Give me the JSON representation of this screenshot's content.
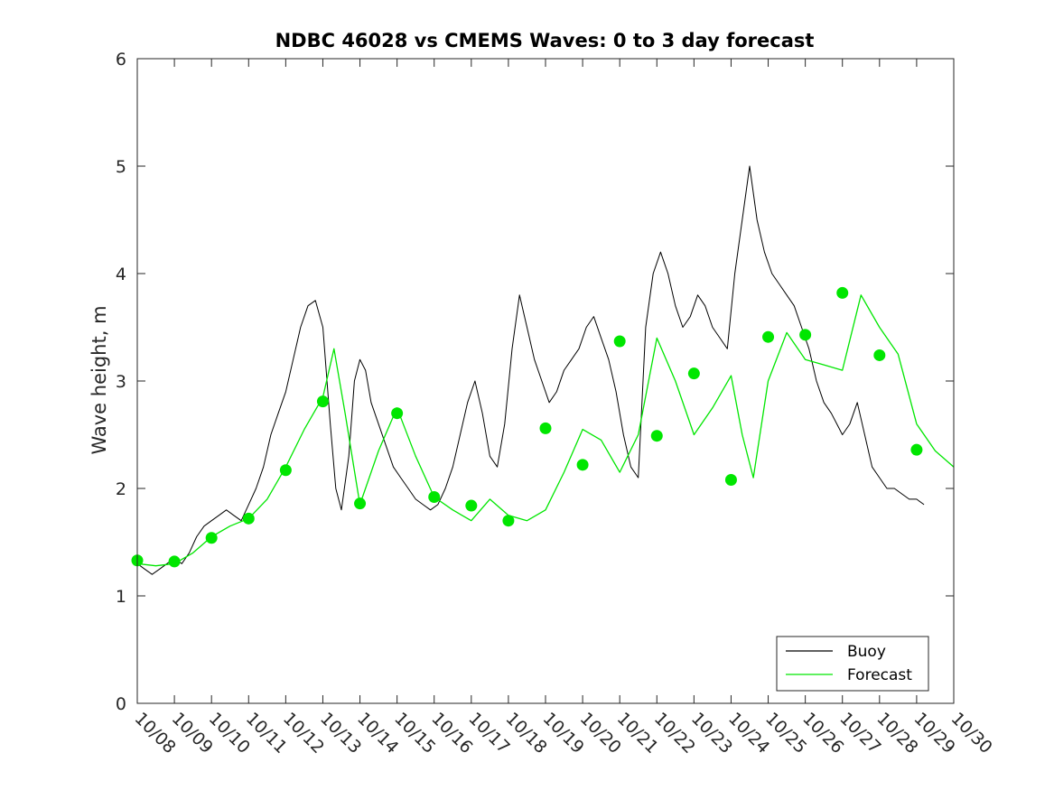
{
  "chart_data": {
    "type": "line",
    "title": "NDBC 46028 vs CMEMS Waves: 0 to 3 day forecast",
    "xlabel": "",
    "ylabel": "Wave height, m",
    "ylim": [
      0,
      6
    ],
    "yticks": [
      "0",
      "1",
      "2",
      "3",
      "4",
      "5",
      "6"
    ],
    "xlim": [
      0,
      22
    ],
    "xticks": [
      "10/08",
      "10/09",
      "10/10",
      "10/11",
      "10/12",
      "10/13",
      "10/14",
      "10/15",
      "10/16",
      "10/17",
      "10/18",
      "10/19",
      "10/20",
      "10/21",
      "10/22",
      "10/23",
      "10/24",
      "10/25",
      "10/26",
      "10/27",
      "10/28",
      "10/29",
      "10/30"
    ],
    "grid": false,
    "legend": {
      "placement": "bottom-right",
      "entries": [
        "Buoy",
        "Forecast"
      ]
    },
    "colors": {
      "buoy": "#000000",
      "forecast": "#00e600",
      "axis": "#262626"
    },
    "series": [
      {
        "name": "Buoy",
        "x": [
          0,
          0.2,
          0.4,
          0.6,
          0.8,
          1.0,
          1.2,
          1.4,
          1.6,
          1.8,
          2.0,
          2.2,
          2.4,
          2.6,
          2.8,
          3.0,
          3.2,
          3.4,
          3.6,
          3.8,
          4.0,
          4.2,
          4.4,
          4.6,
          4.8,
          5.0,
          5.2,
          5.35,
          5.5,
          5.7,
          5.85,
          6.0,
          6.15,
          6.3,
          6.5,
          6.7,
          6.9,
          7.1,
          7.3,
          7.5,
          7.7,
          7.9,
          8.1,
          8.3,
          8.5,
          8.7,
          8.9,
          9.1,
          9.3,
          9.5,
          9.7,
          9.9,
          10.1,
          10.3,
          10.5,
          10.7,
          10.9,
          11.1,
          11.3,
          11.5,
          11.7,
          11.9,
          12.1,
          12.3,
          12.5,
          12.7,
          12.9,
          13.1,
          13.3,
          13.5,
          13.7,
          13.9,
          14.1,
          14.3,
          14.5,
          14.7,
          14.9,
          15.1,
          15.3,
          15.5,
          15.7,
          15.9,
          16.1,
          16.3,
          16.5,
          16.7,
          16.9,
          17.1,
          17.3,
          17.5,
          17.7,
          17.9,
          18.1,
          18.3,
          18.5,
          18.7,
          18.85,
          19.0,
          19.2,
          19.4,
          19.6,
          19.8,
          20.0,
          20.2,
          20.4,
          20.6,
          20.8,
          21.0,
          21.2
        ],
        "values": [
          1.3,
          1.25,
          1.2,
          1.25,
          1.3,
          1.35,
          1.3,
          1.4,
          1.55,
          1.65,
          1.7,
          1.75,
          1.8,
          1.75,
          1.7,
          1.85,
          2.0,
          2.2,
          2.5,
          2.7,
          2.9,
          3.2,
          3.5,
          3.7,
          3.75,
          3.5,
          2.6,
          2.0,
          1.8,
          2.3,
          3.0,
          3.2,
          3.1,
          2.8,
          2.6,
          2.4,
          2.2,
          2.1,
          2.0,
          1.9,
          1.85,
          1.8,
          1.85,
          2.0,
          2.2,
          2.5,
          2.8,
          3.0,
          2.7,
          2.3,
          2.2,
          2.6,
          3.3,
          3.8,
          3.5,
          3.2,
          3.0,
          2.8,
          2.9,
          3.1,
          3.2,
          3.3,
          3.5,
          3.6,
          3.4,
          3.2,
          2.9,
          2.5,
          2.2,
          2.1,
          3.5,
          4.0,
          4.2,
          4.0,
          3.7,
          3.5,
          3.6,
          3.8,
          3.7,
          3.5,
          3.4,
          3.3,
          4.0,
          4.5,
          5.0,
          4.5,
          4.2,
          4.0,
          3.9,
          3.8,
          3.7,
          3.5,
          3.3,
          3.0,
          2.8,
          2.7,
          2.6,
          2.5,
          2.6,
          2.8,
          2.5,
          2.2,
          2.1,
          2.0,
          2.0,
          1.95,
          1.9,
          1.9,
          1.85
        ]
      },
      {
        "name": "Forecast",
        "x": [
          0,
          0.5,
          1.0,
          1.5,
          2.0,
          2.5,
          3.0,
          3.5,
          4.0,
          4.5,
          5.0,
          5.3,
          5.6,
          6.0,
          6.5,
          7.0,
          7.5,
          8.0,
          8.5,
          9.0,
          9.5,
          10.0,
          10.5,
          11.0,
          11.5,
          12.0,
          12.5,
          13.0,
          13.5,
          14.0,
          14.5,
          15.0,
          15.5,
          16.0,
          16.3,
          16.6,
          17.0,
          17.5,
          18.0,
          18.5,
          19.0,
          19.5,
          20.0,
          20.5,
          21.0,
          21.5,
          22.0
        ],
        "values": [
          1.3,
          1.28,
          1.3,
          1.4,
          1.55,
          1.65,
          1.72,
          1.9,
          2.2,
          2.55,
          2.85,
          3.3,
          2.7,
          1.85,
          2.35,
          2.75,
          2.3,
          1.92,
          1.8,
          1.7,
          1.9,
          1.75,
          1.7,
          1.8,
          2.15,
          2.55,
          2.45,
          2.15,
          2.5,
          3.4,
          3.0,
          2.5,
          2.75,
          3.05,
          2.5,
          2.1,
          3.0,
          3.45,
          3.2,
          3.15,
          3.1,
          3.8,
          3.5,
          3.25,
          2.6,
          2.35,
          2.2
        ]
      }
    ],
    "forecast_markers": {
      "x": [
        0,
        1,
        2,
        3,
        4,
        5,
        6,
        7,
        8,
        9,
        10,
        11,
        12,
        13,
        14,
        15,
        16,
        17,
        18,
        19,
        20,
        21
      ],
      "values": [
        1.33,
        1.32,
        1.54,
        1.72,
        2.17,
        2.81,
        1.86,
        2.7,
        1.92,
        1.84,
        1.7,
        2.56,
        2.22,
        3.37,
        2.49,
        3.07,
        2.08,
        3.41,
        3.43,
        3.82,
        3.24,
        2.36
      ]
    }
  }
}
